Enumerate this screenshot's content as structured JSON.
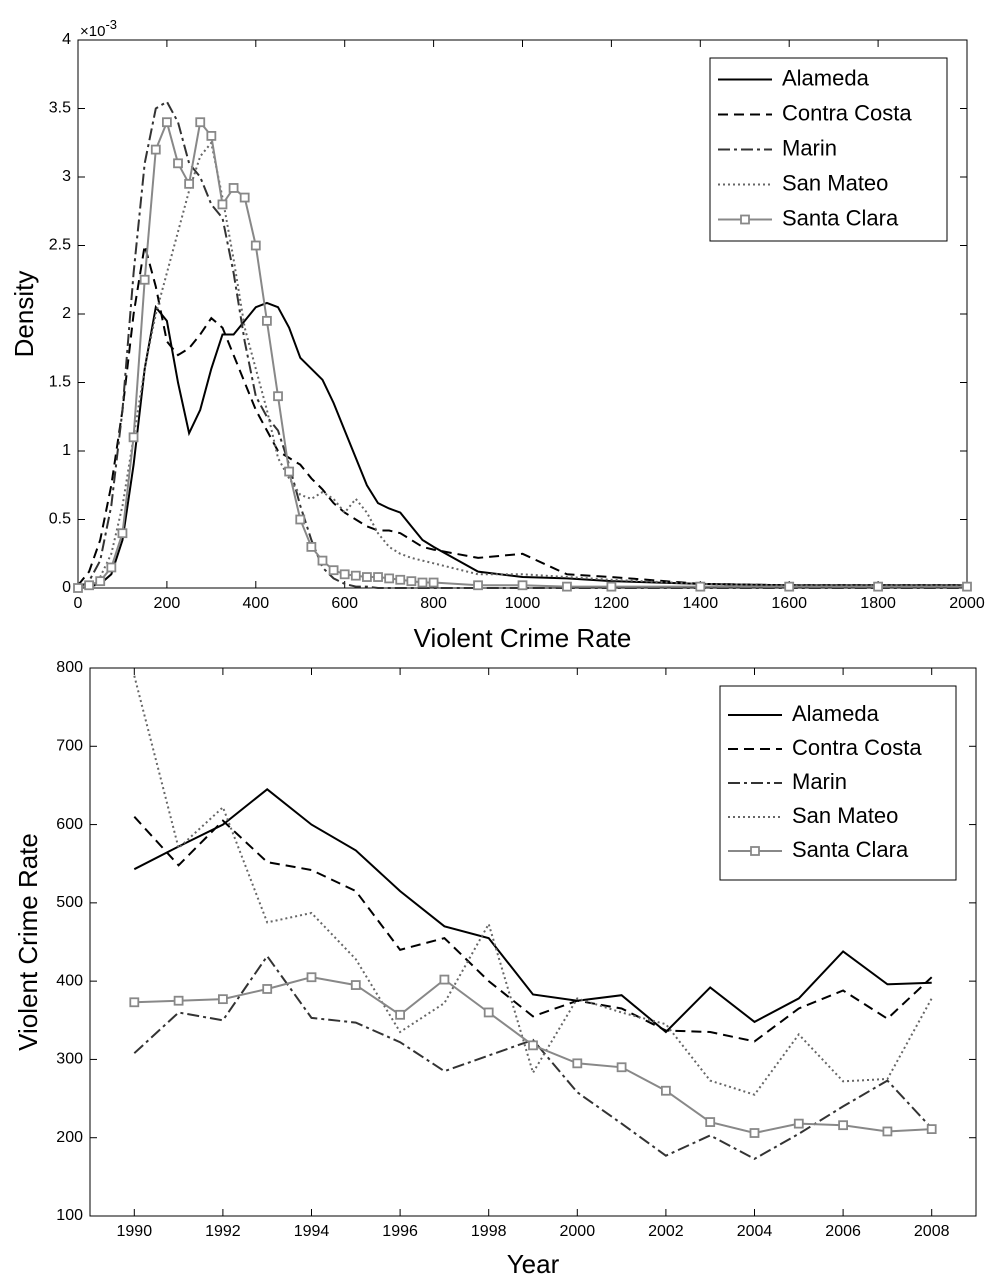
{
  "chart_data": [
    {
      "type": "line",
      "x_label": "Violent Crime Rate",
      "y_label": "Density",
      "y_multiplier": "×10",
      "y_multiplier_exponent": "-3",
      "x": [
        0,
        25,
        50,
        75,
        100,
        125,
        150,
        175,
        200,
        225,
        250,
        275,
        300,
        325,
        350,
        375,
        400,
        425,
        450,
        475,
        500,
        525,
        550,
        575,
        600,
        625,
        650,
        675,
        700,
        725,
        750,
        775,
        800,
        900,
        1000,
        1100,
        1200,
        1400,
        1600,
        1800,
        2000
      ],
      "xlim": [
        0,
        2000
      ],
      "xticks": [
        0,
        200,
        400,
        600,
        800,
        1000,
        1200,
        1400,
        1600,
        1800,
        2000
      ],
      "ylim": [
        0,
        4
      ],
      "yticks": [
        0,
        0.5,
        1,
        1.5,
        2,
        2.5,
        3,
        3.5,
        4
      ],
      "legend": "upper right",
      "series": [
        {
          "name": "Alameda",
          "color": "#000000",
          "line_style": "solid",
          "values": [
            0,
            0.01,
            0.03,
            0.1,
            0.35,
            0.9,
            1.6,
            2.05,
            1.95,
            1.5,
            1.13,
            1.3,
            1.6,
            1.85,
            1.85,
            1.95,
            2.05,
            2.08,
            2.05,
            1.9,
            1.68,
            1.6,
            1.52,
            1.35,
            1.15,
            0.95,
            0.75,
            0.62,
            0.58,
            0.55,
            0.45,
            0.35,
            0.3,
            0.12,
            0.08,
            0.07,
            0.05,
            0.03,
            0.02,
            0.02,
            0.02
          ]
        },
        {
          "name": "Contra Costa",
          "color": "#000000",
          "line_style": "dashed",
          "values": [
            0.02,
            0.12,
            0.35,
            0.75,
            1.3,
            2.0,
            2.5,
            2.2,
            1.8,
            1.7,
            1.75,
            1.85,
            1.97,
            1.9,
            1.7,
            1.5,
            1.3,
            1.15,
            1.0,
            0.95,
            0.9,
            0.8,
            0.72,
            0.62,
            0.55,
            0.5,
            0.45,
            0.42,
            0.42,
            0.4,
            0.35,
            0.3,
            0.28,
            0.22,
            0.25,
            0.1,
            0.08,
            0.03,
            0.02,
            0.02,
            0.02
          ]
        },
        {
          "name": "Marin",
          "color": "#333333",
          "line_style": "dashdot",
          "values": [
            0,
            0.05,
            0.2,
            0.6,
            1.3,
            2.3,
            3.1,
            3.5,
            3.55,
            3.4,
            3.1,
            3.0,
            2.8,
            2.7,
            2.3,
            1.8,
            1.4,
            1.25,
            1.15,
            0.9,
            0.6,
            0.35,
            0.15,
            0.07,
            0.03,
            0.01,
            0.01,
            0,
            0,
            0,
            0,
            0,
            0,
            0,
            0,
            0,
            0,
            0,
            0,
            0,
            0
          ]
        },
        {
          "name": "San Mateo",
          "color": "#666666",
          "line_style": "dotted",
          "values": [
            0,
            0.02,
            0.08,
            0.25,
            0.6,
            1.1,
            1.6,
            2.0,
            2.3,
            2.6,
            2.9,
            3.15,
            3.25,
            2.85,
            2.4,
            1.9,
            1.6,
            1.3,
            0.95,
            0.8,
            0.68,
            0.65,
            0.7,
            0.65,
            0.55,
            0.65,
            0.55,
            0.4,
            0.3,
            0.25,
            0.22,
            0.2,
            0.18,
            0.1,
            0.1,
            0.08,
            0.06,
            0.03,
            0.02,
            0.02,
            0.02
          ]
        },
        {
          "name": "Santa Clara",
          "color": "#888888",
          "line_style": "solid",
          "marker": "square",
          "values": [
            0,
            0.02,
            0.05,
            0.15,
            0.4,
            1.1,
            2.25,
            3.2,
            3.4,
            3.1,
            2.95,
            3.4,
            3.3,
            2.8,
            2.92,
            2.85,
            2.5,
            1.95,
            1.4,
            0.85,
            0.5,
            0.3,
            0.2,
            0.13,
            0.1,
            0.09,
            0.08,
            0.08,
            0.07,
            0.06,
            0.05,
            0.04,
            0.04,
            0.02,
            0.02,
            0.01,
            0.01,
            0.01,
            0.01,
            0.01,
            0.01
          ]
        }
      ]
    },
    {
      "type": "line",
      "x_label": "Year",
      "y_label": "Violent Crime Rate",
      "x": [
        1990,
        1991,
        1992,
        1993,
        1994,
        1995,
        1996,
        1997,
        1998,
        1999,
        2000,
        2001,
        2002,
        2003,
        2004,
        2005,
        2006,
        2007,
        2008
      ],
      "xlim": [
        1989,
        2009
      ],
      "xticks": [
        1990,
        1992,
        1994,
        1996,
        1998,
        2000,
        2002,
        2004,
        2006,
        2008
      ],
      "ylim": [
        100,
        800
      ],
      "yticks": [
        100,
        200,
        300,
        400,
        500,
        600,
        700,
        800
      ],
      "legend": "upper right",
      "series": [
        {
          "name": "Alameda",
          "color": "#000000",
          "line_style": "solid",
          "values": [
            543,
            572,
            600,
            645,
            600,
            567,
            515,
            470,
            455,
            383,
            375,
            382,
            335,
            392,
            348,
            378,
            438,
            396,
            398
          ]
        },
        {
          "name": "Contra Costa",
          "color": "#000000",
          "line_style": "dashed",
          "values": [
            610,
            548,
            605,
            552,
            542,
            515,
            440,
            455,
            400,
            355,
            375,
            365,
            337,
            335,
            323,
            365,
            388,
            352,
            405
          ]
        },
        {
          "name": "Marin",
          "color": "#333333",
          "line_style": "dashdot",
          "values": [
            308,
            360,
            350,
            432,
            353,
            347,
            322,
            285,
            305,
            325,
            258,
            218,
            177,
            203,
            173,
            205,
            240,
            273,
            212
          ]
        },
        {
          "name": "San Mateo",
          "color": "#666666",
          "line_style": "dotted",
          "values": [
            790,
            570,
            622,
            475,
            487,
            428,
            335,
            372,
            473,
            283,
            378,
            360,
            345,
            273,
            255,
            332,
            272,
            275,
            378
          ]
        },
        {
          "name": "Santa Clara",
          "color": "#888888",
          "line_style": "solid",
          "marker": "square",
          "values": [
            373,
            375,
            377,
            390,
            405,
            395,
            357,
            402,
            360,
            318,
            295,
            290,
            260,
            220,
            206,
            218,
            216,
            208,
            211
          ]
        }
      ]
    }
  ]
}
